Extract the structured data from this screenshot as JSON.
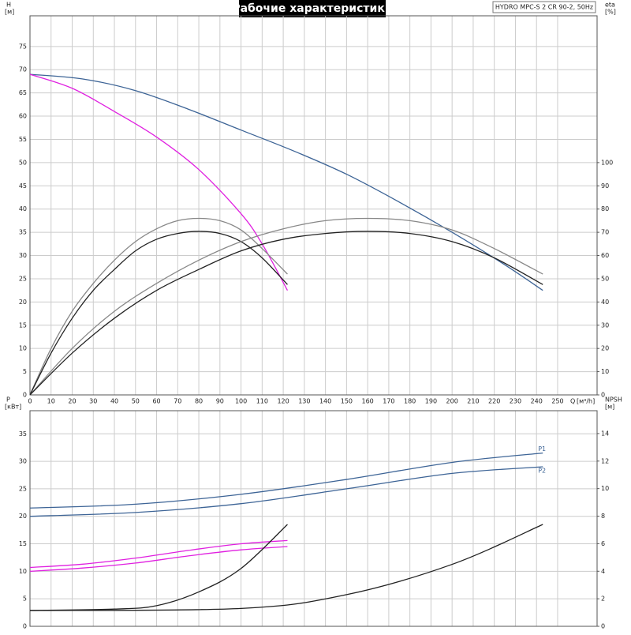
{
  "chart_data": [
    {
      "type": "line",
      "title": "Рабочие характеристики",
      "subtitle": "HYDRO MPC-S 2 CR 90-2, 50Hz",
      "y_label": "H",
      "y_unit": "[м]",
      "y2_label": "eta",
      "y2_unit": "[%]",
      "x_label": "Q",
      "x_unit": "[м³/h]",
      "xlim": [
        0,
        268.7
      ],
      "xticks": [
        0,
        10,
        20,
        30,
        40,
        50,
        60,
        70,
        80,
        90,
        100,
        110,
        120,
        130,
        140,
        150,
        160,
        170,
        180,
        190,
        200,
        210,
        220,
        230,
        240,
        250
      ],
      "ylim": [
        0,
        81.6
      ],
      "yticks": [
        0,
        5,
        10,
        15,
        20,
        25,
        30,
        35,
        40,
        45,
        50,
        55,
        60,
        65,
        70,
        75
      ],
      "y2lim": [
        0,
        163.2
      ],
      "y2ticks": [
        0,
        10,
        20,
        30,
        40,
        50,
        60,
        70,
        80,
        90,
        100
      ],
      "grid": true,
      "series": [
        {
          "color": "#3d6496",
          "x": [
            0,
            25,
            50,
            75,
            100,
            125,
            150,
            175,
            200,
            225,
            243
          ],
          "values": [
            69,
            68,
            65.5,
            61.5,
            57,
            52.5,
            47.5,
            41.5,
            35,
            28,
            22.5
          ]
        },
        {
          "color": "#e020e0",
          "x": [
            0,
            20,
            40,
            60,
            80,
            100,
            110,
            122
          ],
          "values": [
            69,
            66,
            61,
            55.5,
            48.5,
            39,
            32.5,
            22.5
          ]
        },
        {
          "color": "#888888",
          "axis": "y2",
          "x": [
            0,
            10,
            20,
            30,
            40,
            50,
            60,
            70,
            80,
            90,
            100,
            110,
            122
          ],
          "values": [
            0,
            20,
            36,
            48,
            58,
            66,
            71.5,
            75,
            76,
            75,
            71,
            63,
            52
          ]
        },
        {
          "color": "#222222",
          "axis": "y2",
          "x": [
            0,
            10,
            20,
            30,
            40,
            50,
            60,
            70,
            80,
            90,
            100,
            110,
            122
          ],
          "values": [
            0,
            18,
            33,
            45,
            54,
            62,
            67,
            69.5,
            70.4,
            69.5,
            66,
            59,
            47.5
          ]
        },
        {
          "color": "#888888",
          "axis": "y2",
          "x": [
            0,
            20,
            40,
            60,
            80,
            100,
            120,
            140,
            160,
            180,
            200,
            220,
            243
          ],
          "values": [
            0,
            20,
            36,
            48,
            58,
            66,
            71.5,
            75,
            76,
            75,
            71,
            63,
            52
          ]
        },
        {
          "color": "#222222",
          "axis": "y2",
          "x": [
            0,
            20,
            40,
            60,
            80,
            100,
            120,
            140,
            160,
            180,
            200,
            220,
            243
          ],
          "values": [
            0,
            18,
            33,
            45,
            54,
            62,
            67,
            69.5,
            70.4,
            69.5,
            66,
            59,
            47.5
          ]
        }
      ]
    },
    {
      "type": "line",
      "y_label": "P",
      "y_unit": "[кВт]",
      "y2_label": "NPSH",
      "y2_unit": "[м]",
      "xlim": [
        0,
        268.7
      ],
      "xticks": [
        0,
        10,
        20,
        30,
        40,
        50,
        60,
        70,
        80,
        90,
        100,
        110,
        120,
        130,
        140,
        150,
        160,
        170,
        180,
        190,
        200,
        210,
        220,
        230,
        240,
        250
      ],
      "ylim": [
        0,
        39.2
      ],
      "yticks": [
        0,
        5,
        10,
        15,
        20,
        25,
        30,
        35
      ],
      "y2lim": [
        0,
        15.66
      ],
      "y2ticks": [
        0,
        2,
        4,
        6,
        8,
        10,
        12,
        14
      ],
      "grid": true,
      "series": [
        {
          "name": "P1",
          "color": "#3d6496",
          "x": [
            0,
            50,
            100,
            150,
            200,
            243
          ],
          "values": [
            21.5,
            22.2,
            24,
            26.7,
            29.8,
            31.5
          ]
        },
        {
          "name": "P2",
          "color": "#3d6496",
          "x": [
            0,
            50,
            100,
            150,
            200,
            243
          ],
          "values": [
            20,
            20.7,
            22.3,
            25,
            27.8,
            29
          ]
        },
        {
          "color": "#e020e0",
          "x": [
            0,
            25,
            50,
            75,
            100,
            122
          ],
          "values": [
            10.7,
            11.3,
            12.4,
            13.8,
            15,
            15.6
          ]
        },
        {
          "color": "#e020e0",
          "x": [
            0,
            25,
            50,
            75,
            100,
            122
          ],
          "values": [
            10,
            10.6,
            11.5,
            12.8,
            13.9,
            14.5
          ]
        },
        {
          "color": "#222222",
          "axis": "y2",
          "x": [
            0,
            40,
            60,
            80,
            100,
            122
          ],
          "values": [
            1.15,
            1.25,
            1.5,
            2.5,
            4.2,
            7.4
          ]
        },
        {
          "color": "#222222",
          "axis": "y2",
          "x": [
            0,
            100,
            150,
            200,
            243
          ],
          "values": [
            1.15,
            1.3,
            2.3,
            4.5,
            7.4
          ]
        }
      ]
    }
  ]
}
